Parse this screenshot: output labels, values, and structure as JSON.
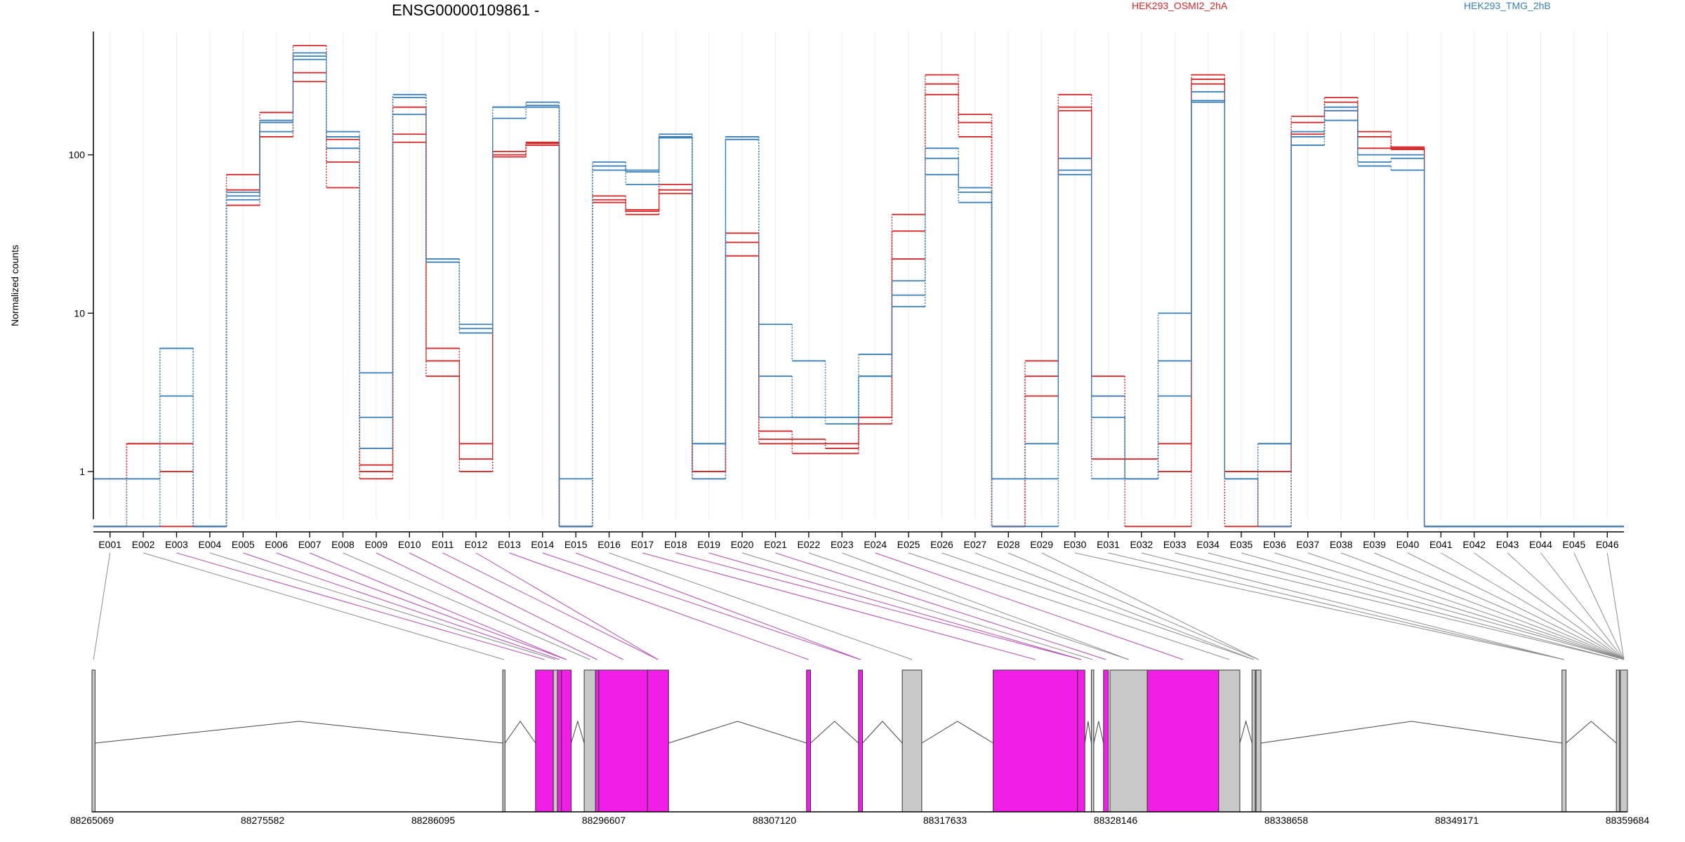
{
  "header": {
    "title": "ENSG00000109861 -",
    "legend": [
      {
        "name": "HEK293_OSMI2_2hA",
        "color": "#d62728"
      },
      {
        "name": "HEK293_TMG_2hB",
        "color": "#3a7fb8"
      }
    ]
  },
  "colors": {
    "osmi": "#d62728",
    "tmg": "#3a7fb8",
    "significant": "#f01ee6",
    "plain": "#c8c8c8",
    "link_sig": "#b44bb4",
    "link_plain": "#8c8c8c"
  },
  "chart_data": {
    "type": "line",
    "ylabel": "Normalized counts",
    "yscale": "log",
    "yticks": [
      1,
      10,
      100
    ],
    "ylim": [
      0.5,
      600
    ],
    "categories": [
      "E001",
      "E002",
      "E003",
      "E004",
      "E005",
      "E006",
      "E007",
      "E008",
      "E009",
      "E010",
      "E011",
      "E012",
      "E013",
      "E014",
      "E015",
      "E016",
      "E017",
      "E018",
      "E019",
      "E020",
      "E021",
      "E022",
      "E023",
      "E024",
      "E025",
      "E026",
      "E027",
      "E028",
      "E029",
      "E030",
      "E031",
      "E032",
      "E033",
      "E034",
      "E035",
      "E036",
      "E037",
      "E038",
      "E039",
      "E040",
      "E041",
      "E042",
      "E043",
      "E044",
      "E045",
      "E046"
    ],
    "series": [
      {
        "group": "osmi",
        "values": [
          0.9,
          1.5,
          1.5,
          0.45,
          75,
          185,
          490,
          125,
          1.0,
          200,
          5.0,
          1.0,
          105,
          120,
          0.45,
          50,
          45,
          65,
          1.0,
          32,
          1.8,
          1.3,
          1.3,
          2.2,
          42,
          320,
          180,
          0.45,
          4.0,
          240,
          4.0,
          0.9,
          1.0,
          320,
          1.0,
          0.45,
          175,
          230,
          140,
          110,
          0.45,
          0.45,
          0.45,
          0.45,
          0.45,
          0.45
        ]
      },
      {
        "group": "osmi",
        "values": [
          0.45,
          1.5,
          1.0,
          0.45,
          48,
          130,
          290,
          62,
          0.9,
          120,
          4.0,
          1.5,
          97,
          118,
          0.45,
          52,
          42,
          57,
          0.9,
          23,
          1.5,
          1.5,
          1.5,
          2.2,
          22,
          240,
          130,
          0.45,
          5.0,
          190,
          1.2,
          1.2,
          1.5,
          280,
          1.0,
          1.0,
          135,
          190,
          110,
          112,
          0.45,
          0.45,
          0.45,
          0.45,
          0.45,
          0.45
        ]
      },
      {
        "group": "osmi",
        "values": [
          0.45,
          0.45,
          0.45,
          0.45,
          60,
          160,
          330,
          90,
          1.1,
          135,
          6.0,
          1.2,
          100,
          115,
          0.45,
          55,
          44,
          60,
          1.0,
          28,
          1.6,
          1.6,
          1.4,
          2.0,
          33,
          280,
          160,
          0.45,
          3.0,
          200,
          3.0,
          0.45,
          0.45,
          300,
          0.45,
          0.45,
          160,
          215,
          130,
          108,
          0.45,
          0.45,
          0.45,
          0.45,
          0.45,
          0.45
        ]
      },
      {
        "group": "tmg",
        "values": [
          0.45,
          0.9,
          6.0,
          0.45,
          55,
          160,
          440,
          140,
          4.2,
          230,
          21,
          8.5,
          200,
          215,
          0.9,
          90,
          80,
          135,
          1.5,
          130,
          8.5,
          5.0,
          2.2,
          5.5,
          16,
          110,
          62,
          0.45,
          0.45,
          95,
          3.0,
          0.9,
          10,
          220,
          0.9,
          1.5,
          140,
          190,
          100,
          100,
          0.45,
          0.45,
          0.45,
          0.45,
          0.45,
          0.45
        ]
      },
      {
        "group": "tmg",
        "values": [
          0.9,
          0.9,
          3.0,
          0.45,
          58,
          140,
          400,
          110,
          2.2,
          180,
          21,
          8.0,
          170,
          200,
          0.45,
          85,
          78,
          130,
          1.5,
          125,
          4.0,
          2.2,
          2.0,
          4.0,
          13,
          95,
          58,
          0.9,
          0.9,
          80,
          2.2,
          0.9,
          5.0,
          250,
          0.9,
          1.5,
          115,
          165,
          90,
          95,
          0.45,
          0.45,
          0.45,
          0.45,
          0.45,
          0.45
        ]
      },
      {
        "group": "tmg",
        "values": [
          0.45,
          0.45,
          6.0,
          0.45,
          52,
          165,
          420,
          130,
          1.4,
          240,
          22,
          7.5,
          200,
          205,
          0.45,
          80,
          65,
          128,
          0.9,
          125,
          2.2,
          2.2,
          2.2,
          4.0,
          11,
          75,
          50,
          0.9,
          1.5,
          75,
          0.9,
          0.9,
          3.0,
          215,
          0.9,
          0.45,
          130,
          200,
          85,
          80,
          0.45,
          0.45,
          0.45,
          0.45,
          0.45,
          0.45
        ]
      }
    ],
    "coordinate_labels": [
      "88265069",
      "88275582",
      "88286095",
      "88296607",
      "88307120",
      "88317633",
      "88328146",
      "88338658",
      "88349171",
      "88359684"
    ],
    "genomic_range": [
      88265069,
      88359684
    ],
    "exon_regions": [
      {
        "start": 88265069,
        "end": 88265260,
        "sig": false
      },
      {
        "start": 88290380,
        "end": 88290520,
        "sig": false
      },
      {
        "start": 88292400,
        "end": 88293500,
        "sig": true
      },
      {
        "start": 88293500,
        "end": 88293750,
        "sig": false
      },
      {
        "start": 88293750,
        "end": 88294000,
        "sig": true
      },
      {
        "start": 88294000,
        "end": 88294600,
        "sig": true
      },
      {
        "start": 88295400,
        "end": 88296100,
        "sig": false
      },
      {
        "start": 88296100,
        "end": 88296300,
        "sig": true
      },
      {
        "start": 88296300,
        "end": 88299300,
        "sig": true
      },
      {
        "start": 88299300,
        "end": 88300600,
        "sig": true
      },
      {
        "start": 88309100,
        "end": 88309350,
        "sig": true
      },
      {
        "start": 88312300,
        "end": 88312550,
        "sig": true
      },
      {
        "start": 88315000,
        "end": 88316200,
        "sig": false
      },
      {
        "start": 88320600,
        "end": 88325800,
        "sig": true
      },
      {
        "start": 88325800,
        "end": 88326250,
        "sig": true
      },
      {
        "start": 88326650,
        "end": 88326800,
        "sig": false
      },
      {
        "start": 88327400,
        "end": 88327700,
        "sig": true
      },
      {
        "start": 88327800,
        "end": 88330100,
        "sig": false
      },
      {
        "start": 88330100,
        "end": 88334500,
        "sig": true
      },
      {
        "start": 88334500,
        "end": 88335800,
        "sig": false
      },
      {
        "start": 88336550,
        "end": 88336750,
        "sig": false
      },
      {
        "start": 88336800,
        "end": 88337100,
        "sig": false
      },
      {
        "start": 88355650,
        "end": 88355900,
        "sig": false
      },
      {
        "start": 88359000,
        "end": 88359200,
        "sig": false
      },
      {
        "start": 88359250,
        "end": 88359684,
        "sig": false
      }
    ]
  }
}
